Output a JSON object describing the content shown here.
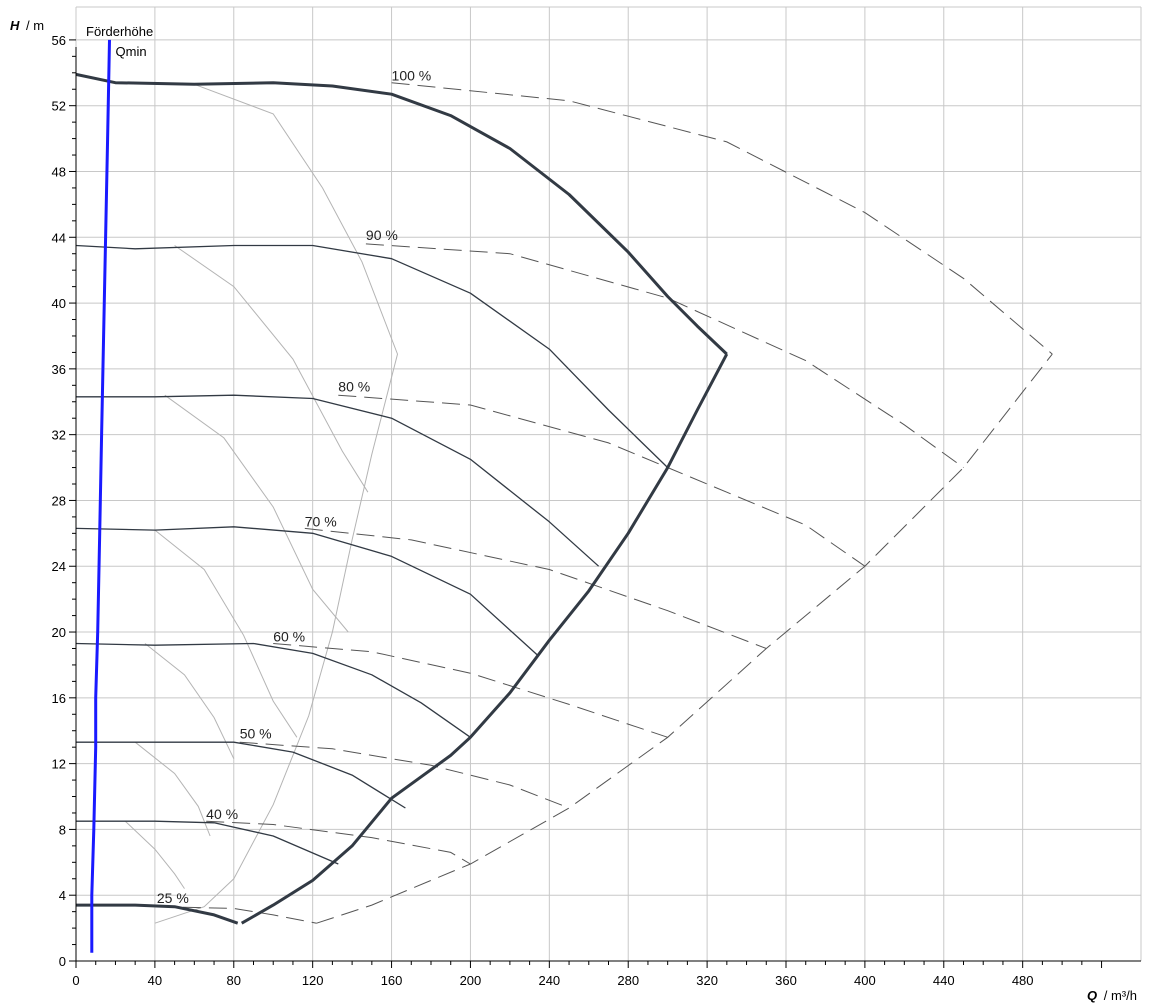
{
  "chart_data": {
    "type": "line",
    "title": "Förderhöhe",
    "ylabel_symbol": "H",
    "ylabel_unit": "/ m",
    "xlabel_symbol": "Q",
    "xlabel_unit": "/ m³/h",
    "xlim": [
      0,
      540
    ],
    "ylim": [
      0,
      58
    ],
    "xticks": [
      0,
      40,
      80,
      120,
      160,
      200,
      240,
      280,
      320,
      360,
      400,
      440,
      480
    ],
    "yticks": [
      0,
      4,
      8,
      12,
      16,
      20,
      24,
      28,
      32,
      36,
      40,
      44,
      48,
      52,
      56
    ],
    "grid": true,
    "qmin": {
      "name": "Qmin",
      "color": "#1a1aff",
      "points": [
        [
          8,
          0.5
        ],
        [
          8,
          4
        ],
        [
          9,
          8
        ],
        [
          10,
          13
        ],
        [
          10,
          16
        ],
        [
          11,
          20
        ],
        [
          12,
          26
        ],
        [
          13,
          32
        ],
        [
          14,
          38
        ],
        [
          15,
          44
        ],
        [
          16,
          50
        ],
        [
          17,
          56
        ]
      ]
    },
    "operating_curves": [
      {
        "name": "100 %",
        "label_pos": [
          160,
          53.4
        ],
        "points": [
          [
            0,
            53.9
          ],
          [
            20,
            53.4
          ],
          [
            60,
            53.3
          ],
          [
            100,
            53.4
          ],
          [
            130,
            53.2
          ],
          [
            160,
            52.7
          ],
          [
            190,
            51.4
          ],
          [
            220,
            49.4
          ],
          [
            250,
            46.6
          ],
          [
            280,
            43.1
          ],
          [
            300,
            40.4
          ],
          [
            315,
            38.6
          ],
          [
            330,
            36.9
          ]
        ],
        "dashed": [
          [
            160,
            53.4
          ],
          [
            250,
            52.3
          ],
          [
            330,
            49.8
          ],
          [
            400,
            45.5
          ],
          [
            450,
            41.5
          ],
          [
            495,
            36.9
          ]
        ]
      },
      {
        "name": "90 %",
        "label_pos": [
          147,
          43.7
        ],
        "points": [
          [
            0,
            43.5
          ],
          [
            30,
            43.3
          ],
          [
            80,
            43.5
          ],
          [
            120,
            43.5
          ],
          [
            160,
            42.7
          ],
          [
            200,
            40.6
          ],
          [
            240,
            37.2
          ],
          [
            270,
            33.5
          ],
          [
            300,
            30.0
          ]
        ],
        "dashed": [
          [
            147,
            43.6
          ],
          [
            220,
            43.0
          ],
          [
            300,
            40.3
          ],
          [
            370,
            36.5
          ],
          [
            420,
            32.6
          ],
          [
            450,
            30.0
          ]
        ]
      },
      {
        "name": "80 %",
        "label_pos": [
          133,
          34.5
        ],
        "points": [
          [
            0,
            34.3
          ],
          [
            40,
            34.3
          ],
          [
            80,
            34.4
          ],
          [
            120,
            34.2
          ],
          [
            160,
            33.0
          ],
          [
            200,
            30.5
          ],
          [
            240,
            26.7
          ],
          [
            265,
            24.0
          ]
        ],
        "dashed": [
          [
            133,
            34.4
          ],
          [
            200,
            33.8
          ],
          [
            270,
            31.5
          ],
          [
            330,
            28.5
          ],
          [
            370,
            26.5
          ],
          [
            400,
            24.0
          ]
        ]
      },
      {
        "name": "70 %",
        "label_pos": [
          116,
          26.3
        ],
        "points": [
          [
            0,
            26.3
          ],
          [
            40,
            26.2
          ],
          [
            80,
            26.4
          ],
          [
            120,
            26.0
          ],
          [
            160,
            24.6
          ],
          [
            200,
            22.3
          ],
          [
            234,
            18.6
          ]
        ],
        "dashed": [
          [
            116,
            26.3
          ],
          [
            170,
            25.6
          ],
          [
            240,
            23.8
          ],
          [
            300,
            21.3
          ],
          [
            350,
            19.0
          ]
        ]
      },
      {
        "name": "60 %",
        "label_pos": [
          100,
          19.3
        ],
        "points": [
          [
            0,
            19.3
          ],
          [
            40,
            19.2
          ],
          [
            90,
            19.3
          ],
          [
            120,
            18.7
          ],
          [
            150,
            17.4
          ],
          [
            175,
            15.7
          ],
          [
            200,
            13.6
          ]
        ],
        "dashed": [
          [
            100,
            19.3
          ],
          [
            150,
            18.8
          ],
          [
            200,
            17.5
          ],
          [
            250,
            15.6
          ],
          [
            300,
            13.6
          ]
        ]
      },
      {
        "name": "50 %",
        "label_pos": [
          83,
          13.4
        ],
        "points": [
          [
            0,
            13.3
          ],
          [
            40,
            13.3
          ],
          [
            80,
            13.3
          ],
          [
            110,
            12.7
          ],
          [
            140,
            11.3
          ],
          [
            167,
            9.3
          ]
        ],
        "dashed": [
          [
            83,
            13.3
          ],
          [
            130,
            12.9
          ],
          [
            180,
            11.9
          ],
          [
            220,
            10.7
          ],
          [
            250,
            9.3
          ]
        ]
      },
      {
        "name": "40 %",
        "label_pos": [
          66,
          8.5
        ],
        "points": [
          [
            0,
            8.5
          ],
          [
            40,
            8.5
          ],
          [
            70,
            8.4
          ],
          [
            100,
            7.6
          ],
          [
            133,
            5.9
          ]
        ],
        "dashed": [
          [
            66,
            8.5
          ],
          [
            100,
            8.3
          ],
          [
            150,
            7.5
          ],
          [
            190,
            6.6
          ],
          [
            200,
            5.9
          ]
        ]
      },
      {
        "name": "25 %",
        "label_pos": [
          41,
          3.4
        ],
        "points": [
          [
            0,
            3.4
          ],
          [
            30,
            3.4
          ],
          [
            50,
            3.3
          ],
          [
            70,
            2.8
          ],
          [
            82,
            2.3
          ]
        ],
        "dashed": [
          [
            41,
            3.3
          ],
          [
            80,
            3.2
          ],
          [
            100,
            2.8
          ],
          [
            122,
            2.3
          ]
        ]
      }
    ],
    "envelope": {
      "points": [
        [
          84,
          2.3
        ],
        [
          100,
          3.4
        ],
        [
          120,
          4.9
        ],
        [
          140,
          7.0
        ],
        [
          160,
          9.9
        ],
        [
          190,
          12.5
        ],
        [
          200,
          13.6
        ],
        [
          220,
          16.3
        ],
        [
          240,
          19.5
        ],
        [
          260,
          22.5
        ],
        [
          280,
          26.0
        ],
        [
          300,
          30.0
        ],
        [
          315,
          33.5
        ],
        [
          330,
          36.9
        ]
      ],
      "dashed": [
        [
          122,
          2.3
        ],
        [
          150,
          3.4
        ],
        [
          200,
          5.9
        ],
        [
          250,
          9.3
        ],
        [
          300,
          13.6
        ],
        [
          350,
          19.0
        ],
        [
          400,
          24.0
        ],
        [
          450,
          30.0
        ],
        [
          495,
          36.9
        ]
      ]
    },
    "efficiency_lines": [
      {
        "points": [
          [
            60,
            53.3
          ],
          [
            100,
            51.5
          ],
          [
            125,
            47.0
          ],
          [
            145,
            42.5
          ],
          [
            163,
            36.9
          ],
          [
            150,
            30.8
          ],
          [
            140,
            25.6
          ],
          [
            130,
            20.0
          ],
          [
            118,
            14.9
          ],
          [
            100,
            9.5
          ],
          [
            80,
            5.0
          ],
          [
            65,
            3.3
          ],
          [
            40,
            2.3
          ]
        ]
      },
      {
        "points": [
          [
            50,
            43.5
          ],
          [
            80,
            41.0
          ],
          [
            110,
            36.6
          ],
          [
            135,
            31.0
          ],
          [
            148,
            28.5
          ]
        ]
      },
      {
        "points": [
          [
            45,
            34.4
          ],
          [
            75,
            31.8
          ],
          [
            100,
            27.6
          ],
          [
            120,
            22.6
          ],
          [
            138,
            20.0
          ]
        ]
      },
      {
        "points": [
          [
            40,
            26.2
          ],
          [
            65,
            23.8
          ],
          [
            85,
            19.8
          ],
          [
            100,
            15.8
          ],
          [
            112,
            13.6
          ]
        ]
      },
      {
        "points": [
          [
            35,
            19.3
          ],
          [
            55,
            17.4
          ],
          [
            70,
            14.8
          ],
          [
            80,
            12.3
          ]
        ]
      },
      {
        "points": [
          [
            30,
            13.3
          ],
          [
            50,
            11.4
          ],
          [
            62,
            9.4
          ],
          [
            68,
            7.6
          ]
        ]
      },
      {
        "points": [
          [
            25,
            8.5
          ],
          [
            40,
            6.8
          ],
          [
            50,
            5.3
          ],
          [
            55,
            4.4
          ]
        ]
      }
    ]
  }
}
